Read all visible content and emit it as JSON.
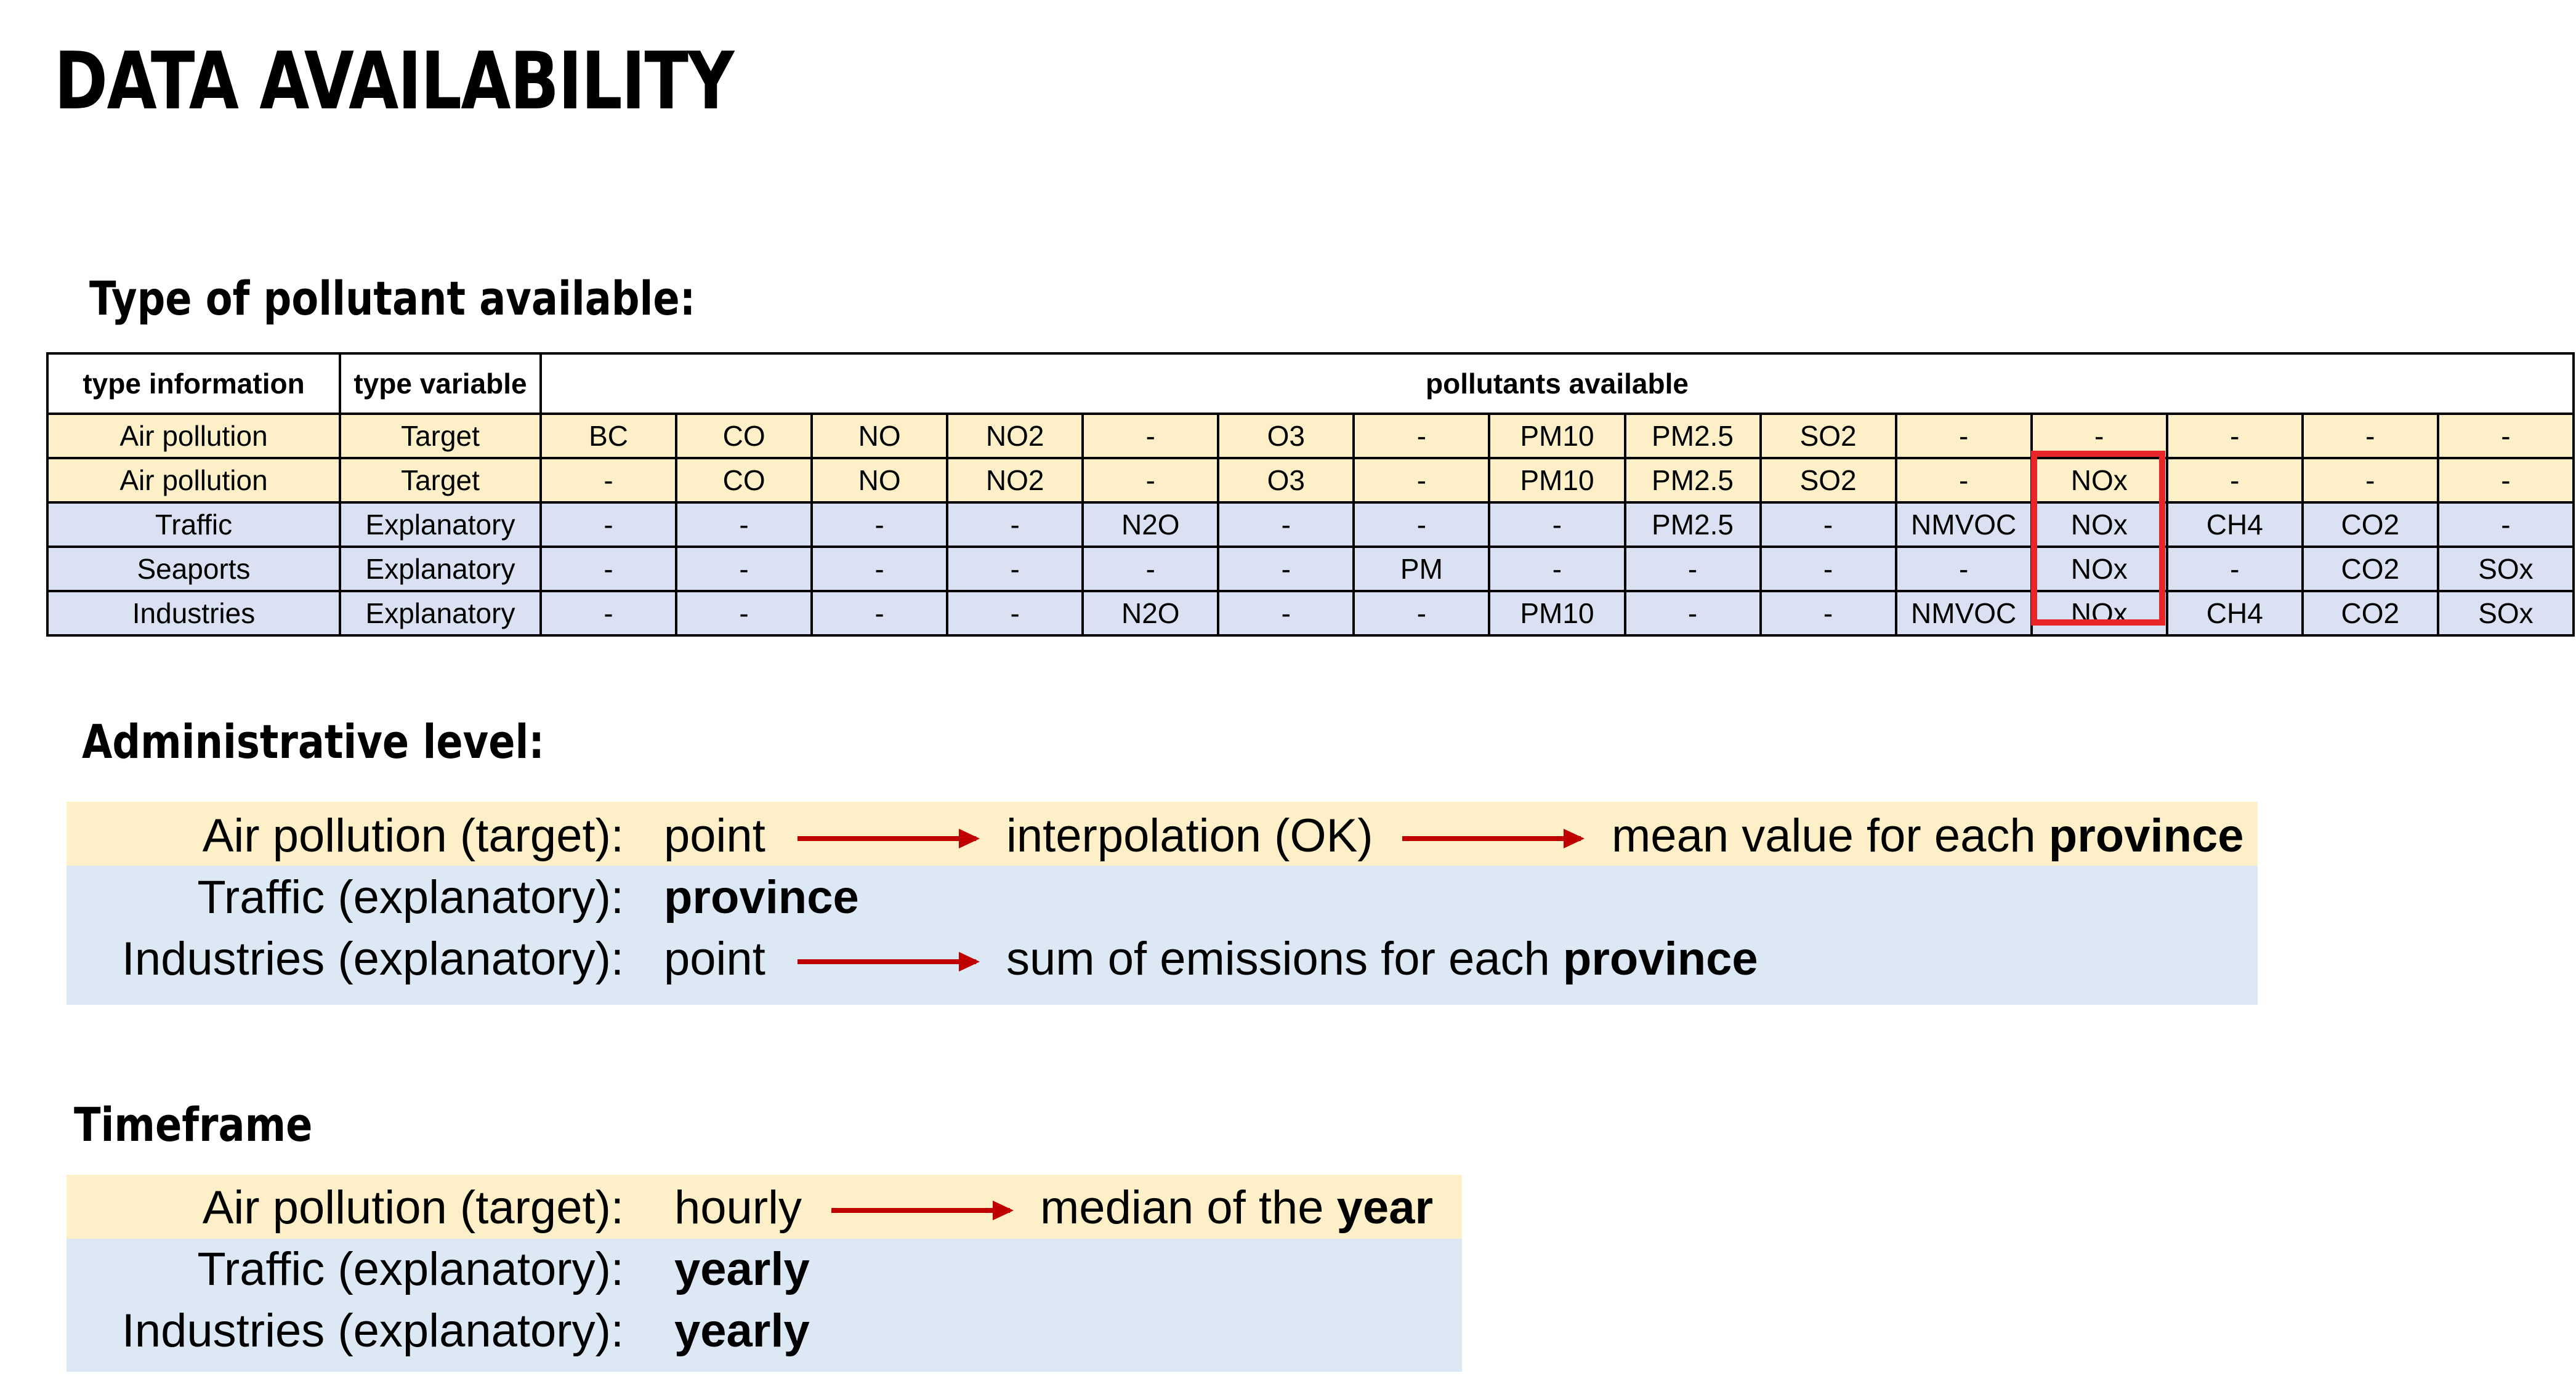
{
  "title": "DATA AVAILABILITY",
  "pollutant_section": {
    "heading": "Type of pollutant available:",
    "headers": {
      "type_information": "type information",
      "type_variable": "type variable",
      "pollutants_available": "pollutants available"
    },
    "rows": [
      {
        "info": "Air pollution",
        "variable": "Target",
        "group": "air",
        "values": [
          "BC",
          "CO",
          "NO",
          "NO2",
          "-",
          "O3",
          "-",
          "PM10",
          "PM2.5",
          "SO2",
          "-",
          "-",
          "-",
          "-",
          "-"
        ]
      },
      {
        "info": "Air pollution",
        "variable": "Target",
        "group": "air",
        "values": [
          "-",
          "CO",
          "NO",
          "NO2",
          "-",
          "O3",
          "-",
          "PM10",
          "PM2.5",
          "SO2",
          "-",
          "NOx",
          "-",
          "-",
          "-"
        ]
      },
      {
        "info": "Traffic",
        "variable": "Explanatory",
        "group": "expl",
        "values": [
          "-",
          "-",
          "-",
          "-",
          "N2O",
          "-",
          "-",
          "-",
          "PM2.5",
          "-",
          "NMVOC",
          "NOx",
          "CH4",
          "CO2",
          "-"
        ]
      },
      {
        "info": "Seaports",
        "variable": "Explanatory",
        "group": "expl",
        "values": [
          "-",
          "-",
          "-",
          "-",
          "-",
          "-",
          "PM",
          "-",
          "-",
          "-",
          "-",
          "NOx",
          "-",
          "CO2",
          "SOx"
        ]
      },
      {
        "info": "Industries",
        "variable": "Explanatory",
        "group": "expl",
        "values": [
          "-",
          "-",
          "-",
          "-",
          "N2O",
          "-",
          "-",
          "PM10",
          "-",
          "-",
          "NMVOC",
          "NOx",
          "CH4",
          "CO2",
          "SOx"
        ]
      }
    ],
    "highlight_color": "#e8262a"
  },
  "admin_section": {
    "heading": "Administrative level:",
    "air_label": "Air pollution (target):",
    "air_step1": "point",
    "air_step2": "interpolation (OK)",
    "air_step3_prefix": "mean value for each ",
    "air_step3_bold": "province",
    "traffic_label": "Traffic (explanatory):",
    "traffic_value": "province",
    "industries_label": "Industries (explanatory):",
    "industries_step1": "point",
    "industries_step2_prefix": "sum of emissions for each ",
    "industries_step2_bold": "province"
  },
  "timeframe_section": {
    "heading": "Timeframe",
    "air_label": "Air pollution (target):",
    "air_step1": "hourly",
    "air_step2_prefix": "median of the ",
    "air_step2_bold": "year",
    "traffic_label": "Traffic (explanatory):",
    "traffic_value": "yearly",
    "industries_label": "Industries (explanatory):",
    "industries_value": "yearly"
  },
  "colors": {
    "target_band": "#fdefc7",
    "explanatory_band": "#dde8f5",
    "table_explanatory": "#d9e1f2",
    "arrow": "#c00000"
  }
}
